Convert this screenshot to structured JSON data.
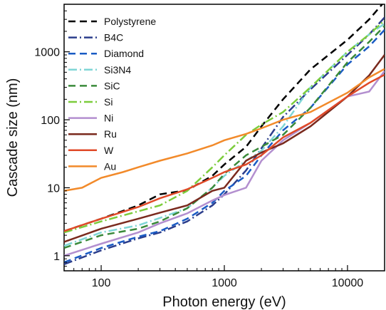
{
  "chart_data": {
    "type": "line",
    "title": "",
    "xlabel": "Photon energy (eV)",
    "ylabel": "Cascade size (nm)",
    "xscale": "log",
    "yscale": "log",
    "xlim": [
      50,
      20000
    ],
    "ylim": [
      0.6,
      5000
    ],
    "x_ticks": [
      {
        "value": 100,
        "label": "100"
      },
      {
        "value": 1000,
        "label": "1000"
      },
      {
        "value": 10000,
        "label": "10000"
      }
    ],
    "y_ticks": [
      {
        "value": 1,
        "label": "1"
      },
      {
        "value": 10,
        "label": "10"
      },
      {
        "value": 100,
        "label": "100"
      },
      {
        "value": 1000,
        "label": "1000"
      }
    ],
    "legend_position": "top-left",
    "grid": false,
    "series": [
      {
        "name": "Polystyrene",
        "color": "#000000",
        "dash": "10,6",
        "points": [
          [
            50,
            2.3
          ],
          [
            100,
            3.5
          ],
          [
            200,
            5.5
          ],
          [
            300,
            8.0
          ],
          [
            500,
            9.2
          ],
          [
            800,
            15
          ],
          [
            1000,
            22
          ],
          [
            1500,
            40
          ],
          [
            2000,
            80
          ],
          [
            3000,
            200
          ],
          [
            5000,
            550
          ],
          [
            10000,
            1500
          ],
          [
            15000,
            3000
          ],
          [
            20000,
            5500
          ]
        ]
      },
      {
        "name": "B4C",
        "color": "#2c3e8c",
        "dash": "12,4,2,4",
        "points": [
          [
            50,
            0.75
          ],
          [
            100,
            1.2
          ],
          [
            200,
            1.8
          ],
          [
            300,
            2.2
          ],
          [
            500,
            3.2
          ],
          [
            800,
            5.5
          ],
          [
            1000,
            8.0
          ],
          [
            1500,
            18
          ],
          [
            2000,
            38
          ],
          [
            3000,
            110
          ],
          [
            5000,
            280
          ],
          [
            10000,
            900
          ],
          [
            15000,
            1800
          ],
          [
            20000,
            3200
          ]
        ]
      },
      {
        "name": "Diamond",
        "color": "#1a5bc4",
        "dash": "10,6",
        "points": [
          [
            50,
            0.8
          ],
          [
            100,
            1.3
          ],
          [
            200,
            1.9
          ],
          [
            300,
            2.3
          ],
          [
            500,
            3.5
          ],
          [
            800,
            6.0
          ],
          [
            1000,
            9.0
          ],
          [
            1500,
            15
          ],
          [
            2000,
            30
          ],
          [
            3000,
            70
          ],
          [
            5000,
            150
          ],
          [
            10000,
            650
          ],
          [
            15000,
            1200
          ],
          [
            20000,
            2100
          ]
        ]
      },
      {
        "name": "Si3N4",
        "color": "#7fd6d6",
        "dash": "12,4,2,4",
        "points": [
          [
            50,
            1.4
          ],
          [
            100,
            2.2
          ],
          [
            200,
            2.8
          ],
          [
            300,
            3.6
          ],
          [
            500,
            5.0
          ],
          [
            800,
            10
          ],
          [
            1000,
            15
          ],
          [
            1500,
            25
          ],
          [
            2000,
            35
          ],
          [
            3000,
            80
          ],
          [
            5000,
            300
          ],
          [
            10000,
            1000
          ],
          [
            15000,
            1800
          ],
          [
            20000,
            2600
          ]
        ]
      },
      {
        "name": "SiC",
        "color": "#3a8a3a",
        "dash": "10,6",
        "points": [
          [
            50,
            1.3
          ],
          [
            100,
            2.0
          ],
          [
            200,
            2.5
          ],
          [
            300,
            3.2
          ],
          [
            500,
            5.0
          ],
          [
            800,
            10
          ],
          [
            1000,
            16
          ],
          [
            1500,
            30
          ],
          [
            2000,
            40
          ],
          [
            3000,
            60
          ],
          [
            5000,
            150
          ],
          [
            10000,
            700
          ],
          [
            15000,
            1400
          ],
          [
            20000,
            2400
          ]
        ]
      },
      {
        "name": "Si",
        "color": "#7ccc3c",
        "dash": "12,4,2,4",
        "points": [
          [
            50,
            2.2
          ],
          [
            100,
            3.2
          ],
          [
            200,
            4.5
          ],
          [
            300,
            5.5
          ],
          [
            500,
            9.0
          ],
          [
            800,
            20
          ],
          [
            1000,
            30
          ],
          [
            1500,
            60
          ],
          [
            2000,
            85
          ],
          [
            3000,
            130
          ],
          [
            5000,
            300
          ],
          [
            10000,
            1000
          ],
          [
            15000,
            1800
          ],
          [
            20000,
            2900
          ]
        ]
      },
      {
        "name": "Ni",
        "color": "#b38fcf",
        "dash": "",
        "points": [
          [
            50,
            1.0
          ],
          [
            100,
            1.5
          ],
          [
            200,
            2.2
          ],
          [
            300,
            3.0
          ],
          [
            500,
            4.2
          ],
          [
            800,
            6.5
          ],
          [
            1000,
            7.8
          ],
          [
            1500,
            10
          ],
          [
            2000,
            25
          ],
          [
            3000,
            50
          ],
          [
            5000,
            90
          ],
          [
            10000,
            220
          ],
          [
            15000,
            260
          ],
          [
            20000,
            520
          ]
        ]
      },
      {
        "name": "Ru",
        "color": "#7a2a1e",
        "dash": "",
        "points": [
          [
            50,
            1.6
          ],
          [
            100,
            2.5
          ],
          [
            200,
            3.5
          ],
          [
            300,
            4.3
          ],
          [
            500,
            5.5
          ],
          [
            800,
            9.0
          ],
          [
            1000,
            10
          ],
          [
            1500,
            25
          ],
          [
            2000,
            33
          ],
          [
            3000,
            45
          ],
          [
            5000,
            80
          ],
          [
            10000,
            220
          ],
          [
            15000,
            450
          ],
          [
            20000,
            900
          ]
        ]
      },
      {
        "name": "W",
        "color": "#e04a28",
        "dash": "",
        "points": [
          [
            50,
            2.3
          ],
          [
            100,
            3.5
          ],
          [
            200,
            5.2
          ],
          [
            300,
            7.0
          ],
          [
            500,
            9.5
          ],
          [
            800,
            14
          ],
          [
            1000,
            17
          ],
          [
            1500,
            22
          ],
          [
            2000,
            30
          ],
          [
            3000,
            55
          ],
          [
            5000,
            90
          ],
          [
            10000,
            220
          ],
          [
            15000,
            350
          ],
          [
            20000,
            460
          ]
        ]
      },
      {
        "name": "Au",
        "color": "#f28a2a",
        "dash": "",
        "points": [
          [
            50,
            9
          ],
          [
            70,
            10
          ],
          [
            100,
            14
          ],
          [
            150,
            17
          ],
          [
            200,
            20
          ],
          [
            300,
            25
          ],
          [
            500,
            32
          ],
          [
            800,
            42
          ],
          [
            1000,
            50
          ],
          [
            1500,
            62
          ],
          [
            2000,
            75
          ],
          [
            3000,
            100
          ],
          [
            5000,
            130
          ],
          [
            10000,
            250
          ],
          [
            15000,
            420
          ],
          [
            20000,
            560
          ]
        ]
      }
    ]
  }
}
